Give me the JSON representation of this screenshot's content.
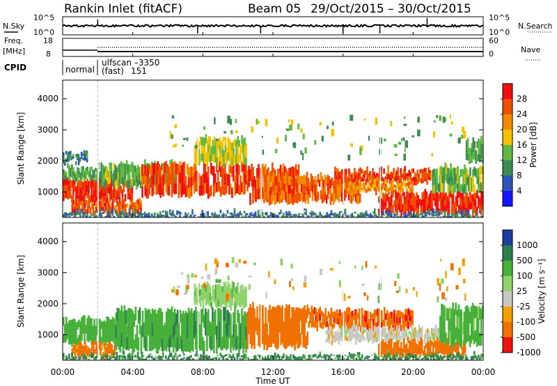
{
  "header": {
    "station": "Rankin Inlet (fitACF)",
    "beam": "Beam 05",
    "date_range": "29/Oct/2015 – 30/Oct/2015"
  },
  "status_panels": {
    "nsky_label": "N.Sky",
    "nsearch_label": "N.Search",
    "nsky_ticks": [
      "10^5",
      "10^0"
    ],
    "nsearch_ticks": [
      "10^5",
      "10^0"
    ],
    "freq_label_line1": "Freq.",
    "freq_label_line2": "[MHz]",
    "freq_ticks": [
      "18",
      "8"
    ],
    "nave_label": "Nave",
    "nave_ticks": [
      "60",
      "0"
    ],
    "cpid_label": "CPID",
    "cpid_modes": [
      {
        "name": "normal",
        "code": ""
      },
      {
        "name": "ulfscan –3350",
        "code": ""
      },
      {
        "name": "(fast)",
        "code": "151"
      }
    ]
  },
  "chart_data": [
    {
      "type": "heatmap",
      "panel": "power",
      "title": "",
      "xlabel": "",
      "ylabel": "Slant Range [km]",
      "xlim": [
        "00:00",
        "00:00"
      ],
      "x_ticks": [
        "00:00",
        "04:00",
        "08:00",
        "12:00",
        "16:00",
        "20:00",
        "00:00"
      ],
      "ylim": [
        180,
        4600
      ],
      "y_ticks": [
        1000,
        2000,
        3000,
        4000
      ],
      "colorbar": {
        "label": "Power [dB]",
        "ticks": [
          4,
          8,
          12,
          16,
          20,
          24,
          28
        ],
        "range": [
          0,
          32
        ],
        "colors": [
          "#1515ff",
          "#2d55b7",
          "#3d8a52",
          "#5fb843",
          "#f2c200",
          "#f08a00",
          "#ee5000",
          "#ee1111"
        ]
      },
      "regions": [
        {
          "t": [
            0.0,
            4.0
          ],
          "r": [
            700,
            1400
          ],
          "v": 28
        },
        {
          "t": [
            0.5,
            4.5
          ],
          "r": [
            300,
            700
          ],
          "v": 26
        },
        {
          "t": [
            0.0,
            2.0
          ],
          "r": [
            1400,
            1800
          ],
          "v": 12
        },
        {
          "t": [
            0.0,
            1.5
          ],
          "r": [
            1950,
            2250
          ],
          "v": 9
        },
        {
          "t": [
            2.0,
            6.5
          ],
          "r": [
            1200,
            1900
          ],
          "v": 13
        },
        {
          "t": [
            4.5,
            10.5
          ],
          "r": [
            900,
            1900
          ],
          "v": 27
        },
        {
          "t": [
            7.5,
            10.5
          ],
          "r": [
            1900,
            2700
          ],
          "v": 16
        },
        {
          "t": [
            10.5,
            13.5
          ],
          "r": [
            700,
            1800
          ],
          "v": 26
        },
        {
          "t": [
            11.5,
            17.0
          ],
          "r": [
            700,
            1500
          ],
          "v": 25
        },
        {
          "t": [
            15.5,
            21.0
          ],
          "r": [
            1300,
            1700
          ],
          "v": 27
        },
        {
          "t": [
            18.0,
            24.0
          ],
          "r": [
            300,
            1000
          ],
          "v": 29
        },
        {
          "t": [
            16.0,
            20.0
          ],
          "r": [
            1000,
            1300
          ],
          "v": 22
        },
        {
          "t": [
            21.0,
            24.0
          ],
          "r": [
            1000,
            1800
          ],
          "v": 14
        },
        {
          "t": [
            23.0,
            24.0
          ],
          "r": [
            2000,
            2700
          ],
          "v": 12
        },
        {
          "t": [
            0.0,
            24.0
          ],
          "r": [
            180,
            330
          ],
          "v": 8
        }
      ]
    },
    {
      "type": "heatmap",
      "panel": "velocity",
      "title": "",
      "xlabel": "Time UT",
      "ylabel": "Slant Range [km]",
      "xlim": [
        "00:00",
        "00:00"
      ],
      "x_ticks": [
        "00:00",
        "04:00",
        "08:00",
        "12:00",
        "16:00",
        "20:00",
        "00:00"
      ],
      "ylim": [
        180,
        4600
      ],
      "y_ticks": [
        1000,
        2000,
        3000,
        4000
      ],
      "colorbar": {
        "label": "Velocity [m s⁻¹]",
        "ticks": [
          1000,
          500,
          100,
          25,
          -25,
          -100,
          -500,
          -1000
        ],
        "colors": [
          "#1e3fa0",
          "#2e7d4f",
          "#47b03a",
          "#8fd36a",
          "#c8c8c0",
          "#f2a000",
          "#f07000",
          "#ee1111"
        ]
      },
      "regions": [
        {
          "t": [
            0.0,
            4.0
          ],
          "r": [
            700,
            1500
          ],
          "v": 300
        },
        {
          "t": [
            0.5,
            3.0
          ],
          "r": [
            300,
            700
          ],
          "v": -150
        },
        {
          "t": [
            3.0,
            10.5
          ],
          "r": [
            500,
            1800
          ],
          "v": 400
        },
        {
          "t": [
            7.5,
            10.5
          ],
          "r": [
            1900,
            2600
          ],
          "v": 80
        },
        {
          "t": [
            10.5,
            14.0
          ],
          "r": [
            600,
            1900
          ],
          "v": -300
        },
        {
          "t": [
            14.0,
            20.0
          ],
          "r": [
            1200,
            1800
          ],
          "v": -400
        },
        {
          "t": [
            15.0,
            21.5
          ],
          "r": [
            800,
            1200
          ],
          "v": 0
        },
        {
          "t": [
            18.0,
            23.0
          ],
          "r": [
            300,
            800
          ],
          "v": -300
        },
        {
          "t": [
            21.5,
            24.0
          ],
          "r": [
            700,
            1900
          ],
          "v": 150
        },
        {
          "t": [
            0.0,
            24.0
          ],
          "r": [
            180,
            330
          ],
          "v": 600
        }
      ]
    }
  ]
}
